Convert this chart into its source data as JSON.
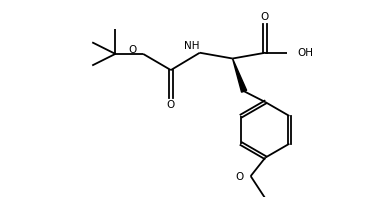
{
  "background": "#ffffff",
  "line_color": "#000000",
  "line_width": 1.3,
  "font_size": 7.5,
  "figsize": [
    3.88,
    1.98
  ],
  "dpi": 100,
  "xlim": [
    0,
    10
  ],
  "ylim": [
    0,
    5.1
  ]
}
